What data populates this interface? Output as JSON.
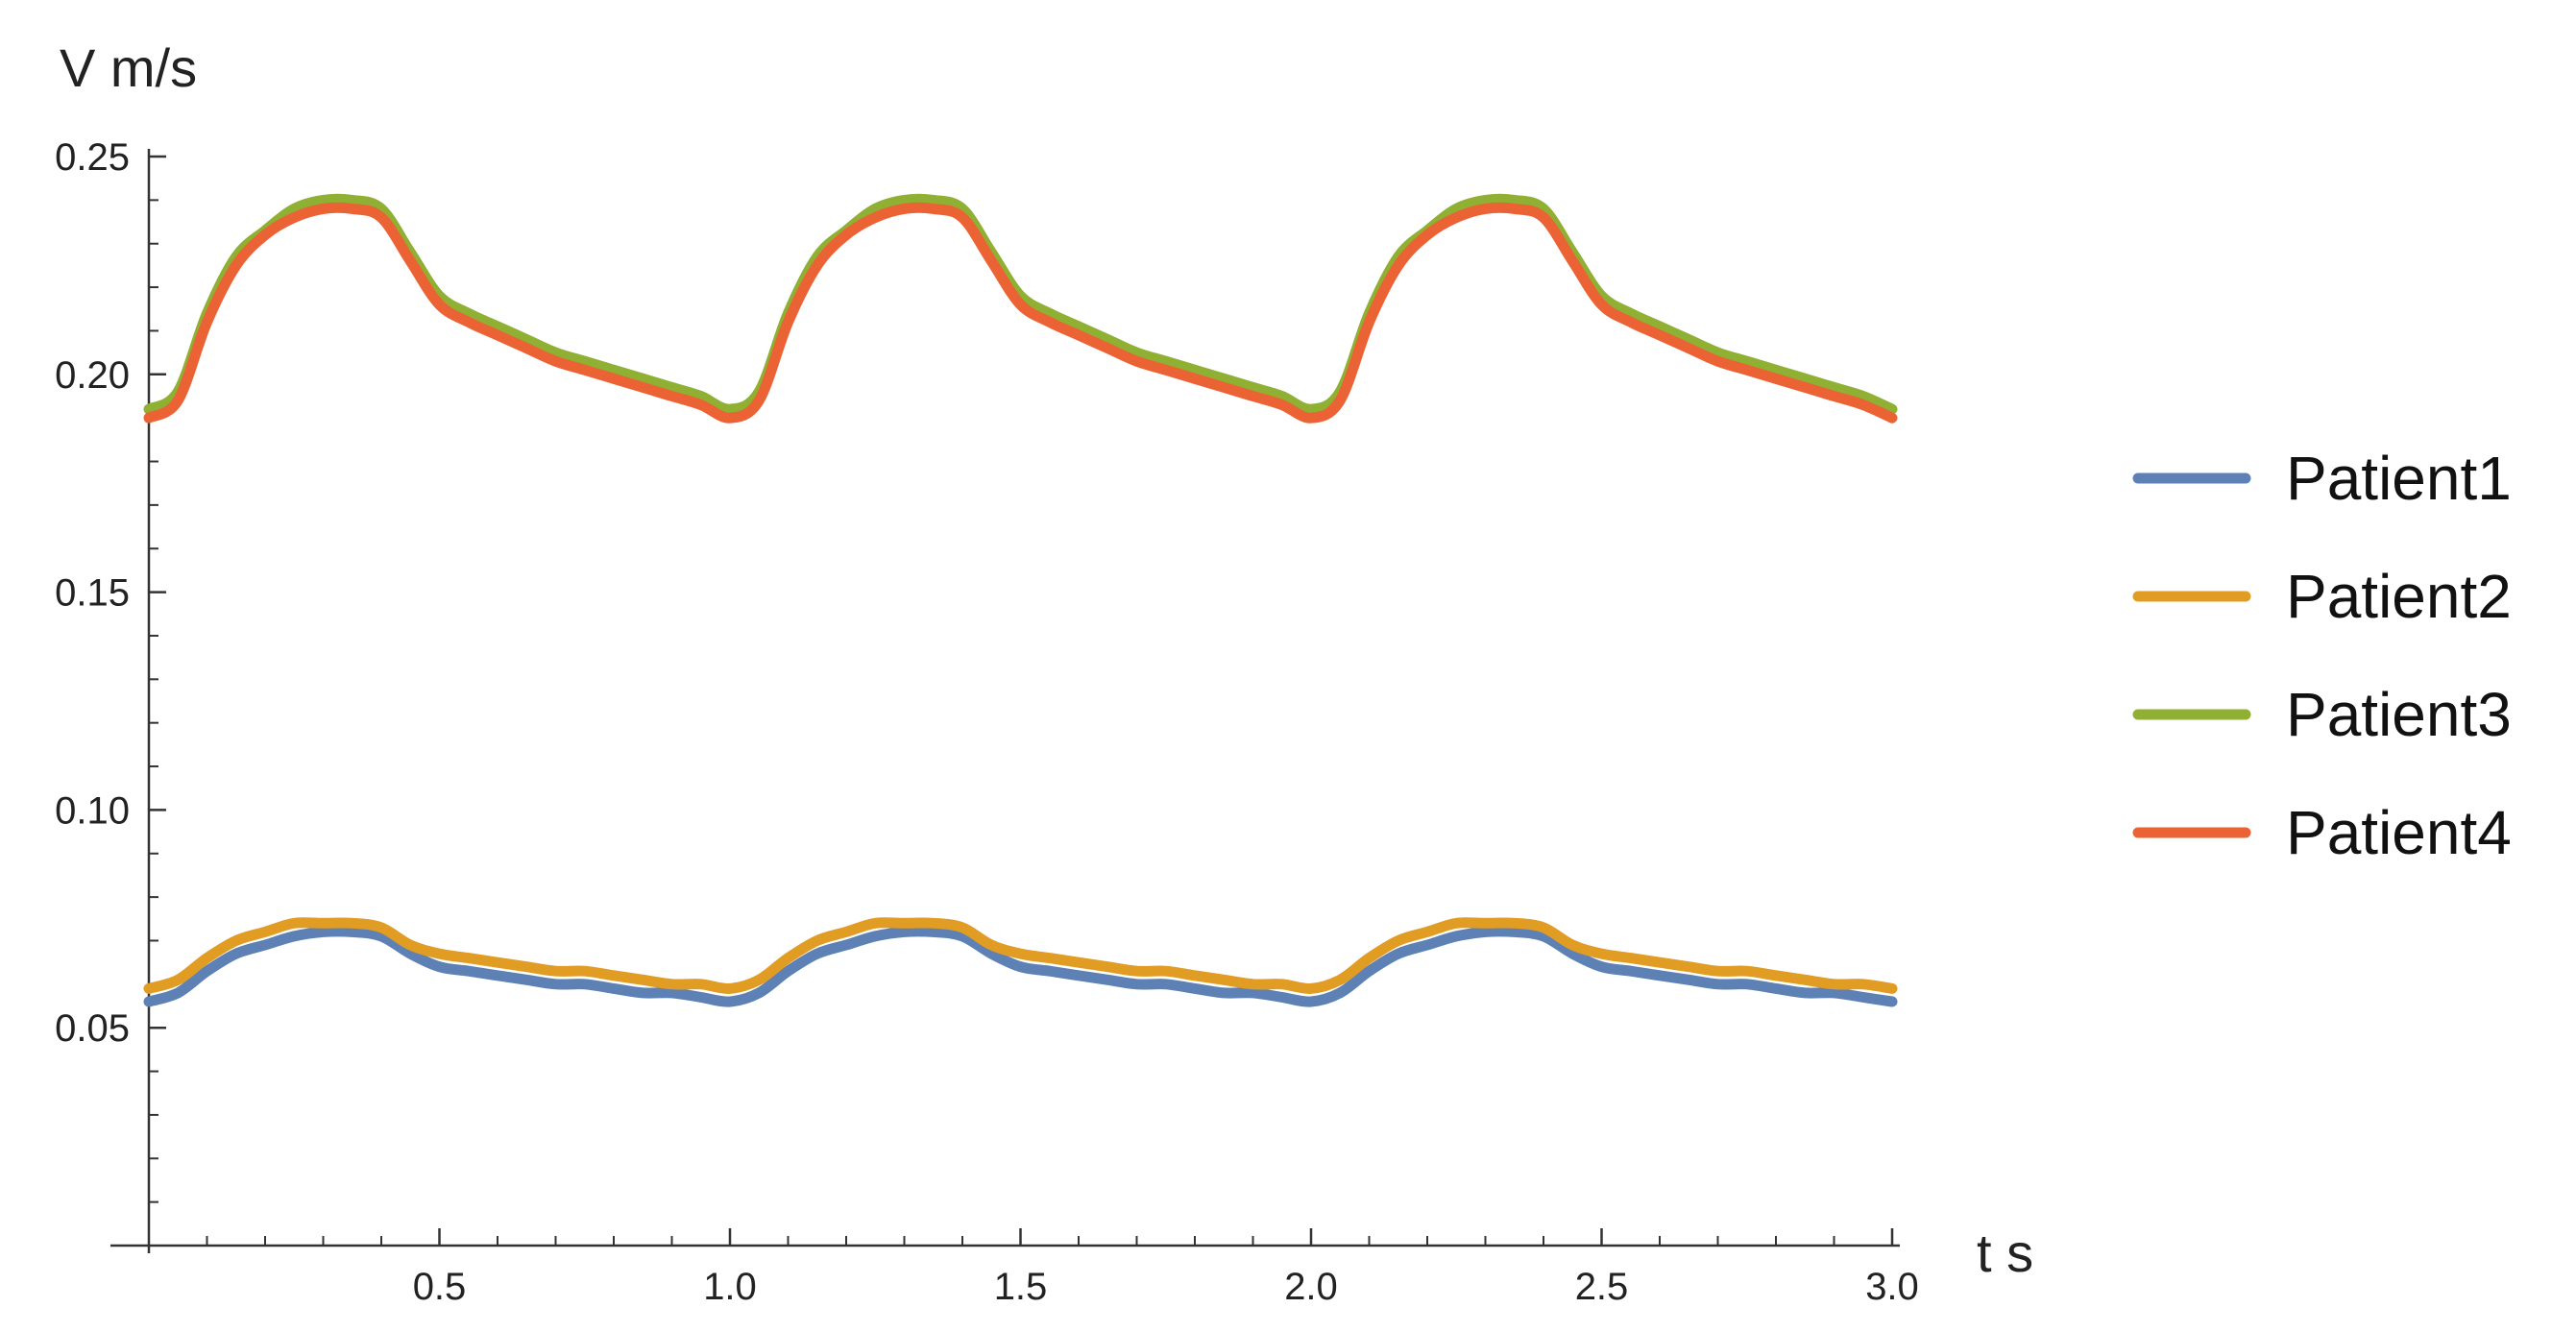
{
  "chart_data": {
    "type": "line",
    "title": "",
    "xlabel": "t s",
    "ylabel": "V m/s",
    "xlim": [
      0,
      3.0
    ],
    "ylim": [
      0,
      0.25
    ],
    "x_ticks": [
      0.5,
      1.0,
      1.5,
      2.0,
      2.5,
      3.0
    ],
    "x_tick_labels": [
      "0.5",
      "1.0",
      "1.5",
      "2.0",
      "2.5",
      "3.0"
    ],
    "y_ticks": [
      0.05,
      0.1,
      0.15,
      0.2,
      0.25
    ],
    "y_tick_labels": [
      "0.05",
      "0.10",
      "0.15",
      "0.20",
      "0.25"
    ],
    "grid": false,
    "legend_position": "right",
    "x": [
      0,
      0.05,
      0.1,
      0.15,
      0.2,
      0.25,
      0.3,
      0.35,
      0.4,
      0.45,
      0.5,
      0.55,
      0.6,
      0.65,
      0.7,
      0.75,
      0.8,
      0.85,
      0.9,
      0.95,
      1.0,
      1.05,
      1.1,
      1.15,
      1.2,
      1.25,
      1.3,
      1.35,
      1.4,
      1.45,
      1.5,
      1.55,
      1.6,
      1.65,
      1.7,
      1.75,
      1.8,
      1.85,
      1.9,
      1.95,
      2.0,
      2.05,
      2.1,
      2.15,
      2.2,
      2.25,
      2.3,
      2.35,
      2.4,
      2.45,
      2.5,
      2.55,
      2.6,
      2.65,
      2.7,
      2.75,
      2.8,
      2.85,
      2.9,
      2.95,
      3.0
    ],
    "series": [
      {
        "name": "Patient1",
        "color": "#5E81B5",
        "values": [
          0.056,
          0.058,
          0.063,
          0.067,
          0.069,
          0.071,
          0.072,
          0.072,
          0.071,
          0.067,
          0.064,
          0.063,
          0.062,
          0.061,
          0.06,
          0.06,
          0.059,
          0.058,
          0.058,
          0.057,
          0.056,
          0.058,
          0.063,
          0.067,
          0.069,
          0.071,
          0.072,
          0.072,
          0.071,
          0.067,
          0.064,
          0.063,
          0.062,
          0.061,
          0.06,
          0.06,
          0.059,
          0.058,
          0.058,
          0.057,
          0.056,
          0.058,
          0.063,
          0.067,
          0.069,
          0.071,
          0.072,
          0.072,
          0.071,
          0.067,
          0.064,
          0.063,
          0.062,
          0.061,
          0.06,
          0.06,
          0.059,
          0.058,
          0.058,
          0.057,
          0.056
        ]
      },
      {
        "name": "Patient2",
        "color": "#E19C24",
        "values": [
          0.059,
          0.061,
          0.066,
          0.07,
          0.072,
          0.074,
          0.074,
          0.074,
          0.073,
          0.069,
          0.067,
          0.066,
          0.065,
          0.064,
          0.063,
          0.063,
          0.062,
          0.061,
          0.06,
          0.06,
          0.059,
          0.061,
          0.066,
          0.07,
          0.072,
          0.074,
          0.074,
          0.074,
          0.073,
          0.069,
          0.067,
          0.066,
          0.065,
          0.064,
          0.063,
          0.063,
          0.062,
          0.061,
          0.06,
          0.06,
          0.059,
          0.061,
          0.066,
          0.07,
          0.072,
          0.074,
          0.074,
          0.074,
          0.073,
          0.069,
          0.067,
          0.066,
          0.065,
          0.064,
          0.063,
          0.063,
          0.062,
          0.061,
          0.06,
          0.06,
          0.059
        ]
      },
      {
        "name": "Patient3",
        "color": "#8FB032",
        "values": [
          0.192,
          0.196,
          0.214,
          0.227,
          0.233,
          0.238,
          0.24,
          0.24,
          0.238,
          0.228,
          0.218,
          0.214,
          0.211,
          0.208,
          0.205,
          0.203,
          0.201,
          0.199,
          0.197,
          0.195,
          0.192,
          0.196,
          0.214,
          0.227,
          0.233,
          0.238,
          0.24,
          0.24,
          0.238,
          0.228,
          0.218,
          0.214,
          0.211,
          0.208,
          0.205,
          0.203,
          0.201,
          0.199,
          0.197,
          0.195,
          0.192,
          0.196,
          0.214,
          0.227,
          0.233,
          0.238,
          0.24,
          0.24,
          0.238,
          0.228,
          0.218,
          0.214,
          0.211,
          0.208,
          0.205,
          0.203,
          0.201,
          0.199,
          0.197,
          0.195,
          0.192
        ]
      },
      {
        "name": "Patient4",
        "color": "#EB6235",
        "values": [
          0.19,
          0.194,
          0.212,
          0.225,
          0.232,
          0.236,
          0.238,
          0.238,
          0.236,
          0.226,
          0.216,
          0.212,
          0.209,
          0.206,
          0.203,
          0.201,
          0.199,
          0.197,
          0.195,
          0.193,
          0.19,
          0.194,
          0.212,
          0.225,
          0.232,
          0.236,
          0.238,
          0.238,
          0.236,
          0.226,
          0.216,
          0.212,
          0.209,
          0.206,
          0.203,
          0.201,
          0.199,
          0.197,
          0.195,
          0.193,
          0.19,
          0.194,
          0.212,
          0.225,
          0.232,
          0.236,
          0.238,
          0.238,
          0.236,
          0.226,
          0.216,
          0.212,
          0.209,
          0.206,
          0.203,
          0.201,
          0.199,
          0.197,
          0.195,
          0.193,
          0.19
        ]
      }
    ]
  }
}
